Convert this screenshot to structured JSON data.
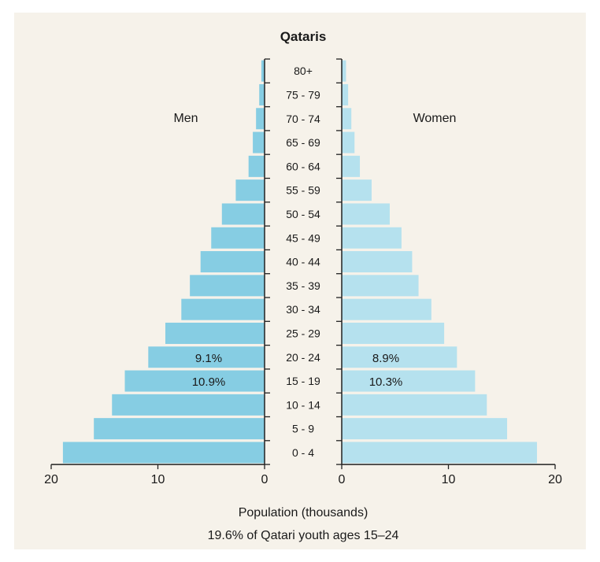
{
  "chart_data": {
    "type": "bar",
    "orientation": "horizontal-population-pyramid",
    "title": "Qataris",
    "xlabel": "Population (thousands)",
    "footnote": "19.6% of Qatari youth ages 15–24",
    "xlim": [
      0,
      20
    ],
    "xticks": [
      "20",
      "10",
      "0",
      "0",
      "10",
      "20"
    ],
    "categories": [
      "80+",
      "75 - 79",
      "70 - 74",
      "65 - 69",
      "60 - 64",
      "55 - 59",
      "50 - 54",
      "45 - 49",
      "40 - 44",
      "35 - 39",
      "30 - 34",
      "25 - 29",
      "20 - 24",
      "15 - 19",
      "10 - 14",
      "5 - 9",
      "0 - 4"
    ],
    "series": [
      {
        "name": "Men",
        "color": "#86cde3",
        "values": [
          0.3,
          0.5,
          0.8,
          1.1,
          1.5,
          2.7,
          4.0,
          5.0,
          6.0,
          7.0,
          7.8,
          9.3,
          10.9,
          13.1,
          14.3,
          16.0,
          18.9
        ]
      },
      {
        "name": "Women",
        "color": "#b5e1ee",
        "values": [
          0.4,
          0.6,
          0.9,
          1.2,
          1.7,
          2.8,
          4.5,
          5.6,
          6.6,
          7.2,
          8.4,
          9.6,
          10.8,
          12.5,
          13.6,
          15.5,
          18.3
        ]
      }
    ],
    "annotations": [
      {
        "series": "Men",
        "category": "20 - 24",
        "text": "9.1%"
      },
      {
        "series": "Men",
        "category": "15 - 19",
        "text": "10.9%"
      },
      {
        "series": "Women",
        "category": "20 - 24",
        "text": "8.9%"
      },
      {
        "series": "Women",
        "category": "15 - 19",
        "text": "10.3%"
      }
    ]
  }
}
